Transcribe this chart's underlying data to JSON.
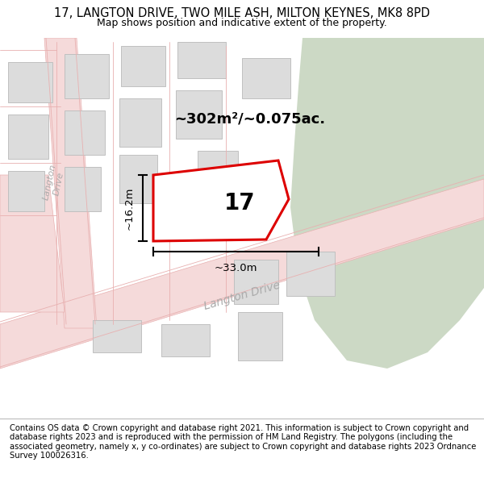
{
  "title_line1": "17, LANGTON DRIVE, TWO MILE ASH, MILTON KEYNES, MK8 8PD",
  "title_line2": "Map shows position and indicative extent of the property.",
  "footer_text": "Contains OS data © Crown copyright and database right 2021. This information is subject to Crown copyright and database rights 2023 and is reproduced with the permission of HM Land Registry. The polygons (including the associated geometry, namely x, y co-ordinates) are subject to Crown copyright and database rights 2023 Ordnance Survey 100026316.",
  "map_bg": "#f2f0ed",
  "green_color": "#ccd9c5",
  "road_fill": "#f5dada",
  "road_edge": "#e8b0b0",
  "bld_fill": "#dcdcdc",
  "bld_edge": "#c0c0c0",
  "red_color": "#dd0000",
  "white": "#ffffff",
  "highlight_number": "17",
  "area_text": "~302m²/~0.075ac.",
  "dim_width": "~33.0m",
  "dim_height": "~16.2m",
  "title_fontsize": 10.5,
  "subtitle_fontsize": 9,
  "footer_fontsize": 7.2,
  "label_color": "#aaaaaa"
}
